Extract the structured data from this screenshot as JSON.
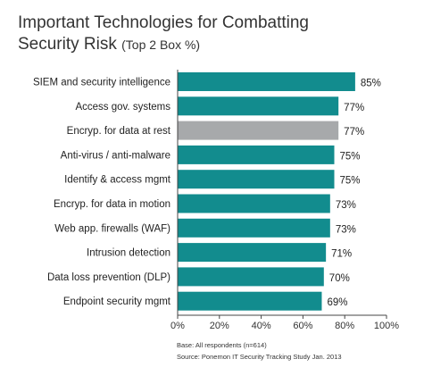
{
  "title_line1": "Important Technologies for Combatting",
  "title_line2": "Security Risk",
  "title_suffix": "(Top 2 Box %)",
  "colors": {
    "bar": "#128c8e",
    "highlight": "#a7a9ab",
    "axis": "#444444"
  },
  "chart_data": {
    "type": "bar",
    "orientation": "horizontal",
    "title": "Important Technologies for Combatting Security Risk (Top 2 Box %)",
    "categories": [
      "SIEM and security intelligence",
      "Access gov. systems",
      "Encryp. for data at rest",
      "Anti-virus / anti-malware",
      "Identify & access mgmt",
      "Encryp. for data in motion",
      "Web app. firewalls (WAF)",
      "Intrusion detection",
      "Data loss prevention (DLP)",
      "Endpoint security mgmt"
    ],
    "values": [
      85,
      77,
      77,
      75,
      75,
      73,
      73,
      71,
      70,
      69
    ],
    "value_labels": [
      "85%",
      "77%",
      "77%",
      "75%",
      "75%",
      "73%",
      "73%",
      "71%",
      "70%",
      "69%"
    ],
    "highlighted_index": 2,
    "xlim": [
      0,
      100
    ],
    "xticks": [
      "0%",
      "20%",
      "40%",
      "60%",
      "80%",
      "100%"
    ],
    "grid": false
  },
  "footnotes": {
    "base": "Base: All respondents (n=614)",
    "source": "Source: Ponemon IT Security Tracking Study Jan. 2013"
  }
}
